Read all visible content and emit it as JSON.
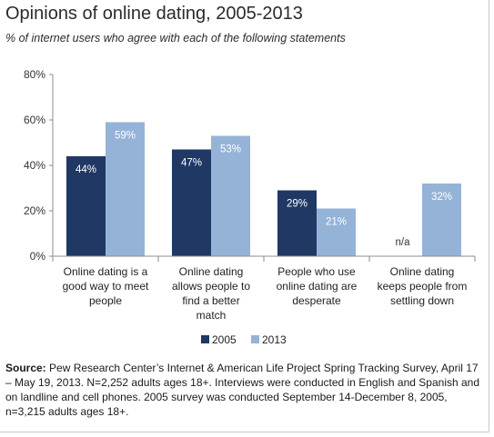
{
  "title": "Opinions of online dating, 2005-2013",
  "subtitle": "% of internet users who agree with each of the following statements",
  "source": {
    "label": "Source:",
    "text": " Pew Research Center’s Internet & American Life Project Spring Tracking Survey, April 17 – May 19, 2013. N=2,252 adults ages 18+. Interviews were conducted in English and Spanish and on landline and cell phones.  2005 survey was conducted September 14-December 8, 2005, n=3,215 adults ages 18+."
  },
  "colors": {
    "s2005": "#1f3864",
    "s2013": "#95b3d7"
  },
  "chart_data": {
    "type": "bar",
    "title": "Opinions of online dating, 2005-2013",
    "subtitle": "% of internet users who agree with each of the following statements",
    "categories": [
      [
        "Online dating is a",
        "good way to meet",
        "people"
      ],
      [
        "Online dating",
        "allows people to",
        "find a better",
        "match"
      ],
      [
        "People who use",
        "online dating are",
        "desperate"
      ],
      [
        "Online dating",
        "keeps people from",
        "settling down"
      ]
    ],
    "series": [
      {
        "name": "2005",
        "values": [
          44,
          47,
          29,
          null
        ],
        "labels": [
          "44%",
          "47%",
          "29%",
          "n/a"
        ]
      },
      {
        "name": "2013",
        "values": [
          59,
          53,
          21,
          32
        ],
        "labels": [
          "59%",
          "53%",
          "21%",
          "32%"
        ]
      }
    ],
    "yticks": [
      "0%",
      "20%",
      "40%",
      "60%",
      "80%"
    ],
    "ylim": [
      0,
      80
    ],
    "grid": false,
    "legend": "bottom"
  }
}
